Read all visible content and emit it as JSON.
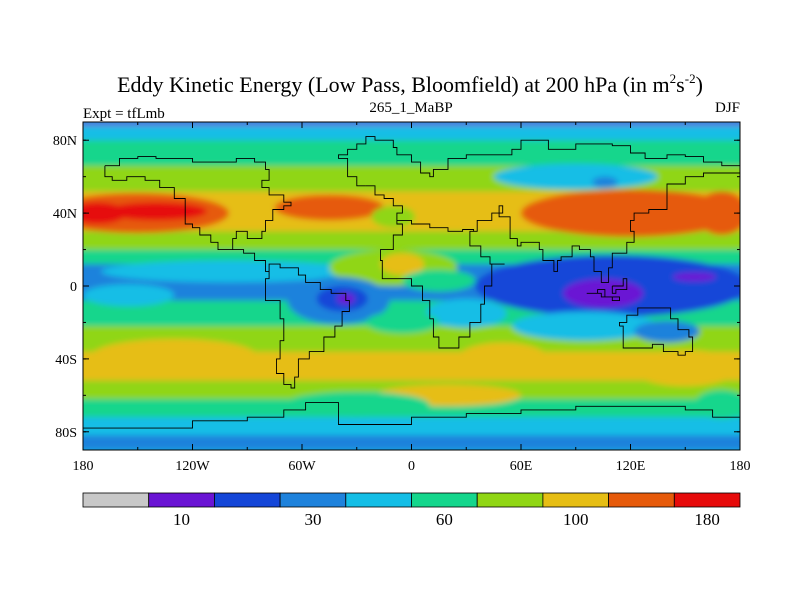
{
  "chart_data": {
    "type": "heatmap",
    "title_main": "Eddy Kinetic Energy (Low Pass, Bloomfield) at 200 hPa (in m",
    "title_sup1": "2",
    "title_mid": "s",
    "title_sup2": "-2",
    "title_end": ")",
    "left_label": "Expt = tfLmb",
    "center_label": "265_1_MaBP",
    "right_label": "DJF",
    "x_ticks": [
      {
        "value": -180,
        "label": "180"
      },
      {
        "value": -120,
        "label": "120W"
      },
      {
        "value": -60,
        "label": "60W"
      },
      {
        "value": 0,
        "label": "0"
      },
      {
        "value": 60,
        "label": "60E"
      },
      {
        "value": 120,
        "label": "120E"
      },
      {
        "value": 180,
        "label": "180"
      }
    ],
    "y_ticks": [
      {
        "value": 80,
        "label": "80N"
      },
      {
        "value": 40,
        "label": "40N"
      },
      {
        "value": 0,
        "label": "0"
      },
      {
        "value": -40,
        "label": "40S"
      },
      {
        "value": -80,
        "label": "80S"
      }
    ],
    "xlim": [
      -180,
      180
    ],
    "ylim": [
      -90,
      90
    ],
    "colorbar": {
      "colors": [
        "#c8c8c8",
        "#6a14d4",
        "#1446d8",
        "#1e82dc",
        "#14bee6",
        "#14d68c",
        "#90d614",
        "#e6be14",
        "#e65a0a",
        "#e60a0a"
      ],
      "labels": [
        {
          "value": 10,
          "label": "10"
        },
        {
          "value": 30,
          "label": "30"
        },
        {
          "value": 60,
          "label": "60"
        },
        {
          "value": 100,
          "label": "100"
        },
        {
          "value": 180,
          "label": "180"
        }
      ],
      "label_positions": [
        1.5,
        3.5,
        5.5,
        7.5,
        9.5
      ]
    },
    "field_bands": [
      {
        "lat_range": [
          88,
          90
        ],
        "level": 1
      },
      {
        "lat_range": [
          80,
          88
        ],
        "level": 4
      },
      {
        "lat_range": [
          66,
          80
        ],
        "level": 5
      },
      {
        "lat_range": [
          52,
          66
        ],
        "level": 6
      },
      {
        "lat_range": [
          30,
          52
        ],
        "level": 7
      },
      {
        "lat_range": [
          20,
          30
        ],
        "level": 6
      },
      {
        "lat_range": [
          12,
          20
        ],
        "level": 5
      },
      {
        "lat_range": [
          -8,
          12
        ],
        "level": 3
      },
      {
        "lat_range": [
          -22,
          -8
        ],
        "level": 5
      },
      {
        "lat_range": [
          -36,
          -22
        ],
        "level": 6
      },
      {
        "lat_range": [
          -52,
          -36
        ],
        "level": 7
      },
      {
        "lat_range": [
          -62,
          -52
        ],
        "level": 6
      },
      {
        "lat_range": [
          -72,
          -62
        ],
        "level": 5
      },
      {
        "lat_range": [
          -82,
          -72
        ],
        "level": 4
      },
      {
        "lat_range": [
          -90,
          -82
        ],
        "level": 3
      }
    ],
    "field_blobs": [
      {
        "lon": -150,
        "lat": 40,
        "rlon": 50,
        "rlat": 11,
        "level": 8
      },
      {
        "lon": -140,
        "lat": 41,
        "rlon": 28,
        "rlat": 5,
        "level": 9
      },
      {
        "lon": -172,
        "lat": 40,
        "rlon": 16,
        "rlat": 6,
        "level": 9
      },
      {
        "lon": -45,
        "lat": 43,
        "rlon": 30,
        "rlat": 7,
        "level": 8
      },
      {
        "lon": 120,
        "lat": 40,
        "rlon": 60,
        "rlat": 13,
        "level": 8
      },
      {
        "lon": 170,
        "lat": 40,
        "rlon": 14,
        "rlat": 12,
        "level": 8
      },
      {
        "lon": -10,
        "lat": 38,
        "rlon": 12,
        "rlat": 6,
        "level": 6
      },
      {
        "lon": 90,
        "lat": 60,
        "rlon": 45,
        "rlat": 7,
        "level": 4
      },
      {
        "lon": 106,
        "lat": 57,
        "rlon": 7,
        "rlat": 3,
        "level": 3
      },
      {
        "lon": -100,
        "lat": 8,
        "rlon": 70,
        "rlat": 6,
        "level": 4
      },
      {
        "lon": -155,
        "lat": -5,
        "rlon": 25,
        "rlat": 6,
        "level": 4
      },
      {
        "lon": -10,
        "lat": 10,
        "rlon": 35,
        "rlat": 10,
        "level": 6
      },
      {
        "lon": -5,
        "lat": 12,
        "rlon": 12,
        "rlat": 6,
        "level": 7
      },
      {
        "lon": 15,
        "lat": 3,
        "rlon": 20,
        "rlat": 6,
        "level": 5
      },
      {
        "lon": -40,
        "lat": -8,
        "rlon": 28,
        "rlat": 13,
        "level": 3
      },
      {
        "lon": -38,
        "lat": -7,
        "rlon": 14,
        "rlat": 7,
        "level": 2
      },
      {
        "lon": -36,
        "lat": -7,
        "rlon": 5,
        "rlat": 3,
        "level": 1
      },
      {
        "lon": 110,
        "lat": 0,
        "rlon": 75,
        "rlat": 17,
        "level": 2
      },
      {
        "lon": 105,
        "lat": -4,
        "rlon": 22,
        "rlat": 8,
        "level": 1
      },
      {
        "lon": 155,
        "lat": 5,
        "rlon": 12,
        "rlat": 2.5,
        "level": 1
      },
      {
        "lon": 95,
        "lat": -22,
        "rlon": 40,
        "rlat": 8,
        "level": 4
      },
      {
        "lon": 30,
        "lat": -15,
        "rlon": 22,
        "rlat": 8,
        "level": 4
      },
      {
        "lon": -5,
        "lat": -20,
        "rlon": 20,
        "rlat": 6,
        "level": 5
      },
      {
        "lon": -130,
        "lat": -38,
        "rlon": 45,
        "rlat": 9,
        "level": 7
      },
      {
        "lon": 50,
        "lat": -40,
        "rlon": 25,
        "rlat": 9,
        "level": 7
      },
      {
        "lon": 150,
        "lat": -45,
        "rlon": 30,
        "rlat": 10,
        "level": 7
      },
      {
        "lon": 20,
        "lat": -60,
        "rlon": 40,
        "rlat": 6,
        "level": 7
      },
      {
        "lon": -30,
        "lat": -65,
        "rlon": 40,
        "rlat": 7,
        "level": 5
      },
      {
        "lon": 170,
        "lat": -65,
        "rlon": 15,
        "rlat": 8,
        "level": 5
      },
      {
        "lon": 140,
        "lat": -25,
        "rlon": 18,
        "rlat": 6,
        "level": 3
      }
    ],
    "coast_outlines": [
      [
        [
          -25,
          55
        ],
        [
          -30,
          60
        ],
        [
          -35,
          64
        ],
        [
          -35,
          70
        ],
        [
          -40,
          72
        ],
        [
          -35,
          75
        ],
        [
          -30,
          78
        ],
        [
          -25,
          82
        ],
        [
          -20,
          80
        ],
        [
          -10,
          76
        ],
        [
          -8,
          72
        ],
        [
          0,
          68
        ],
        [
          5,
          62
        ],
        [
          10,
          60
        ],
        [
          12,
          64
        ],
        [
          20,
          70
        ],
        [
          30,
          72
        ],
        [
          45,
          72
        ],
        [
          55,
          75
        ],
        [
          60,
          80
        ],
        [
          75,
          75
        ],
        [
          90,
          78
        ],
        [
          110,
          77
        ],
        [
          120,
          73
        ],
        [
          128,
          70
        ],
        [
          140,
          72
        ],
        [
          150,
          71
        ],
        [
          160,
          68
        ],
        [
          170,
          66
        ],
        [
          180,
          66
        ]
      ],
      [
        [
          -25,
          55
        ],
        [
          -20,
          50
        ],
        [
          -15,
          48
        ],
        [
          -10,
          44
        ],
        [
          -5,
          40
        ],
        [
          -8,
          36
        ],
        [
          0,
          34
        ],
        [
          10,
          32
        ],
        [
          20,
          30
        ],
        [
          28,
          31
        ],
        [
          34,
          30
        ],
        [
          32,
          22
        ],
        [
          38,
          16
        ],
        [
          43,
          12
        ],
        [
          51,
          12
        ],
        [
          44,
          0
        ],
        [
          40,
          -10
        ],
        [
          38,
          -20
        ],
        [
          32,
          -28
        ],
        [
          26,
          -34
        ],
        [
          18,
          -34
        ],
        [
          15,
          -28
        ],
        [
          12,
          -18
        ],
        [
          10,
          -8
        ],
        [
          6,
          0
        ],
        [
          0,
          4
        ],
        [
          -10,
          4
        ],
        [
          -16,
          8
        ],
        [
          -16,
          14
        ],
        [
          -17,
          20
        ],
        [
          -10,
          28
        ],
        [
          -5,
          34
        ],
        [
          -8,
          36
        ]
      ],
      [
        [
          34,
          30
        ],
        [
          36,
          36
        ],
        [
          44,
          40
        ],
        [
          50,
          44
        ],
        [
          48,
          38
        ],
        [
          54,
          26
        ],
        [
          58,
          22
        ],
        [
          60,
          24
        ],
        [
          64,
          24
        ],
        [
          70,
          20
        ],
        [
          72,
          14
        ],
        [
          78,
          8
        ],
        [
          80,
          14
        ],
        [
          82,
          16
        ],
        [
          88,
          22
        ],
        [
          92,
          20
        ],
        [
          98,
          16
        ],
        [
          100,
          8
        ],
        [
          104,
          2
        ],
        [
          108,
          10
        ],
        [
          110,
          18
        ],
        [
          118,
          24
        ],
        [
          122,
          30
        ],
        [
          120,
          36
        ],
        [
          122,
          40
        ],
        [
          130,
          42
        ],
        [
          140,
          48
        ],
        [
          140,
          56
        ],
        [
          150,
          60
        ],
        [
          160,
          62
        ],
        [
          180,
          66
        ]
      ],
      [
        [
          -168,
          66
        ],
        [
          -160,
          70
        ],
        [
          -150,
          71
        ],
        [
          -140,
          70
        ],
        [
          -130,
          70
        ],
        [
          -120,
          68
        ],
        [
          -110,
          68
        ],
        [
          -96,
          70
        ],
        [
          -86,
          68
        ],
        [
          -80,
          64
        ],
        [
          -78,
          58
        ],
        [
          -82,
          54
        ],
        [
          -78,
          50
        ],
        [
          -70,
          46
        ],
        [
          -66,
          44
        ],
        [
          -70,
          42
        ],
        [
          -76,
          36
        ],
        [
          -80,
          30
        ],
        [
          -82,
          26
        ],
        [
          -90,
          30
        ],
        [
          -96,
          26
        ],
        [
          -98,
          20
        ],
        [
          -92,
          18
        ],
        [
          -86,
          14
        ],
        [
          -80,
          8
        ],
        [
          -78,
          4
        ],
        [
          -80,
          -2
        ],
        [
          -80,
          -8
        ],
        [
          -72,
          -18
        ],
        [
          -70,
          -30
        ],
        [
          -72,
          -40
        ],
        [
          -74,
          -48
        ],
        [
          -70,
          -54
        ],
        [
          -66,
          -56
        ],
        [
          -64,
          -50
        ],
        [
          -62,
          -40
        ],
        [
          -56,
          -36
        ],
        [
          -48,
          -28
        ],
        [
          -42,
          -22
        ],
        [
          -38,
          -14
        ],
        [
          -34,
          -8
        ],
        [
          -36,
          -4
        ],
        [
          -44,
          -2
        ],
        [
          -50,
          2
        ],
        [
          -58,
          6
        ],
        [
          -62,
          10
        ],
        [
          -72,
          12
        ],
        [
          -78,
          8
        ]
      ],
      [
        [
          -98,
          20
        ],
        [
          -104,
          20
        ],
        [
          -106,
          24
        ],
        [
          -110,
          28
        ],
        [
          -116,
          32
        ],
        [
          -120,
          34
        ],
        [
          -124,
          40
        ],
        [
          -124,
          48
        ],
        [
          -130,
          54
        ],
        [
          -138,
          58
        ],
        [
          -146,
          60
        ],
        [
          -156,
          58
        ],
        [
          -164,
          60
        ],
        [
          -168,
          66
        ]
      ],
      [
        [
          114,
          -22
        ],
        [
          116,
          -34
        ],
        [
          124,
          -34
        ],
        [
          132,
          -32
        ],
        [
          138,
          -36
        ],
        [
          146,
          -38
        ],
        [
          150,
          -36
        ],
        [
          154,
          -28
        ],
        [
          152,
          -24
        ],
        [
          146,
          -18
        ],
        [
          142,
          -12
        ],
        [
          136,
          -12
        ],
        [
          130,
          -12
        ],
        [
          124,
          -16
        ],
        [
          118,
          -20
        ],
        [
          114,
          -22
        ]
      ],
      [
        [
          -180,
          -78
        ],
        [
          -150,
          -78
        ],
        [
          -120,
          -74
        ],
        [
          -90,
          -72
        ],
        [
          -70,
          -68
        ],
        [
          -58,
          -64
        ],
        [
          -40,
          -76
        ],
        [
          0,
          -72
        ],
        [
          30,
          -70
        ],
        [
          60,
          -68
        ],
        [
          90,
          -66
        ],
        [
          120,
          -66
        ],
        [
          150,
          -68
        ],
        [
          165,
          -72
        ],
        [
          180,
          -78
        ]
      ],
      [
        [
          96,
          -4
        ],
        [
          102,
          -2
        ],
        [
          106,
          -6
        ],
        [
          114,
          -8
        ],
        [
          110,
          -6
        ],
        [
          104,
          -4
        ],
        [
          96,
          -4
        ]
      ],
      [
        [
          110,
          0
        ],
        [
          116,
          4
        ],
        [
          118,
          -2
        ],
        [
          112,
          -4
        ],
        [
          110,
          0
        ]
      ]
    ]
  }
}
